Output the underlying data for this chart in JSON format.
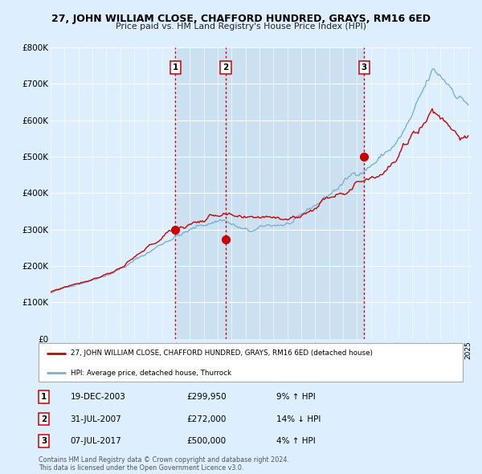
{
  "title": "27, JOHN WILLIAM CLOSE, CHAFFORD HUNDRED, GRAYS, RM16 6ED",
  "subtitle": "Price paid vs. HM Land Registry's House Price Index (HPI)",
  "ylim": [
    0,
    800000
  ],
  "yticks": [
    0,
    100000,
    200000,
    300000,
    400000,
    500000,
    600000,
    700000,
    800000
  ],
  "ytick_labels": [
    "£0",
    "£100K",
    "£200K",
    "£300K",
    "£400K",
    "£500K",
    "£600K",
    "£700K",
    "£800K"
  ],
  "year_start": 1995,
  "year_end": 2025,
  "red_line_color": "#cc0000",
  "blue_line_color": "#7ab0d4",
  "bg_color": "#ddeeff",
  "shade_color": "#c8dff0",
  "grid_color": "#ffffff",
  "dashed_color": "#cc0000",
  "sale1_year": 2003.97,
  "sale1_price": 299950,
  "sale2_year": 2007.58,
  "sale2_price": 272000,
  "sale3_year": 2017.52,
  "sale3_price": 500000,
  "legend1": "27, JOHN WILLIAM CLOSE, CHAFFORD HUNDRED, GRAYS, RM16 6ED (detached house)",
  "legend2": "HPI: Average price, detached house, Thurrock",
  "table_entries": [
    {
      "num": 1,
      "date": "19-DEC-2003",
      "price": "£299,950",
      "change": "9% ↑ HPI"
    },
    {
      "num": 2,
      "date": "31-JUL-2007",
      "price": "£272,000",
      "change": "14% ↓ HPI"
    },
    {
      "num": 3,
      "date": "07-JUL-2017",
      "price": "£500,000",
      "change": "4% ↑ HPI"
    }
  ],
  "footnote1": "Contains HM Land Registry data © Crown copyright and database right 2024.",
  "footnote2": "This data is licensed under the Open Government Licence v3.0."
}
